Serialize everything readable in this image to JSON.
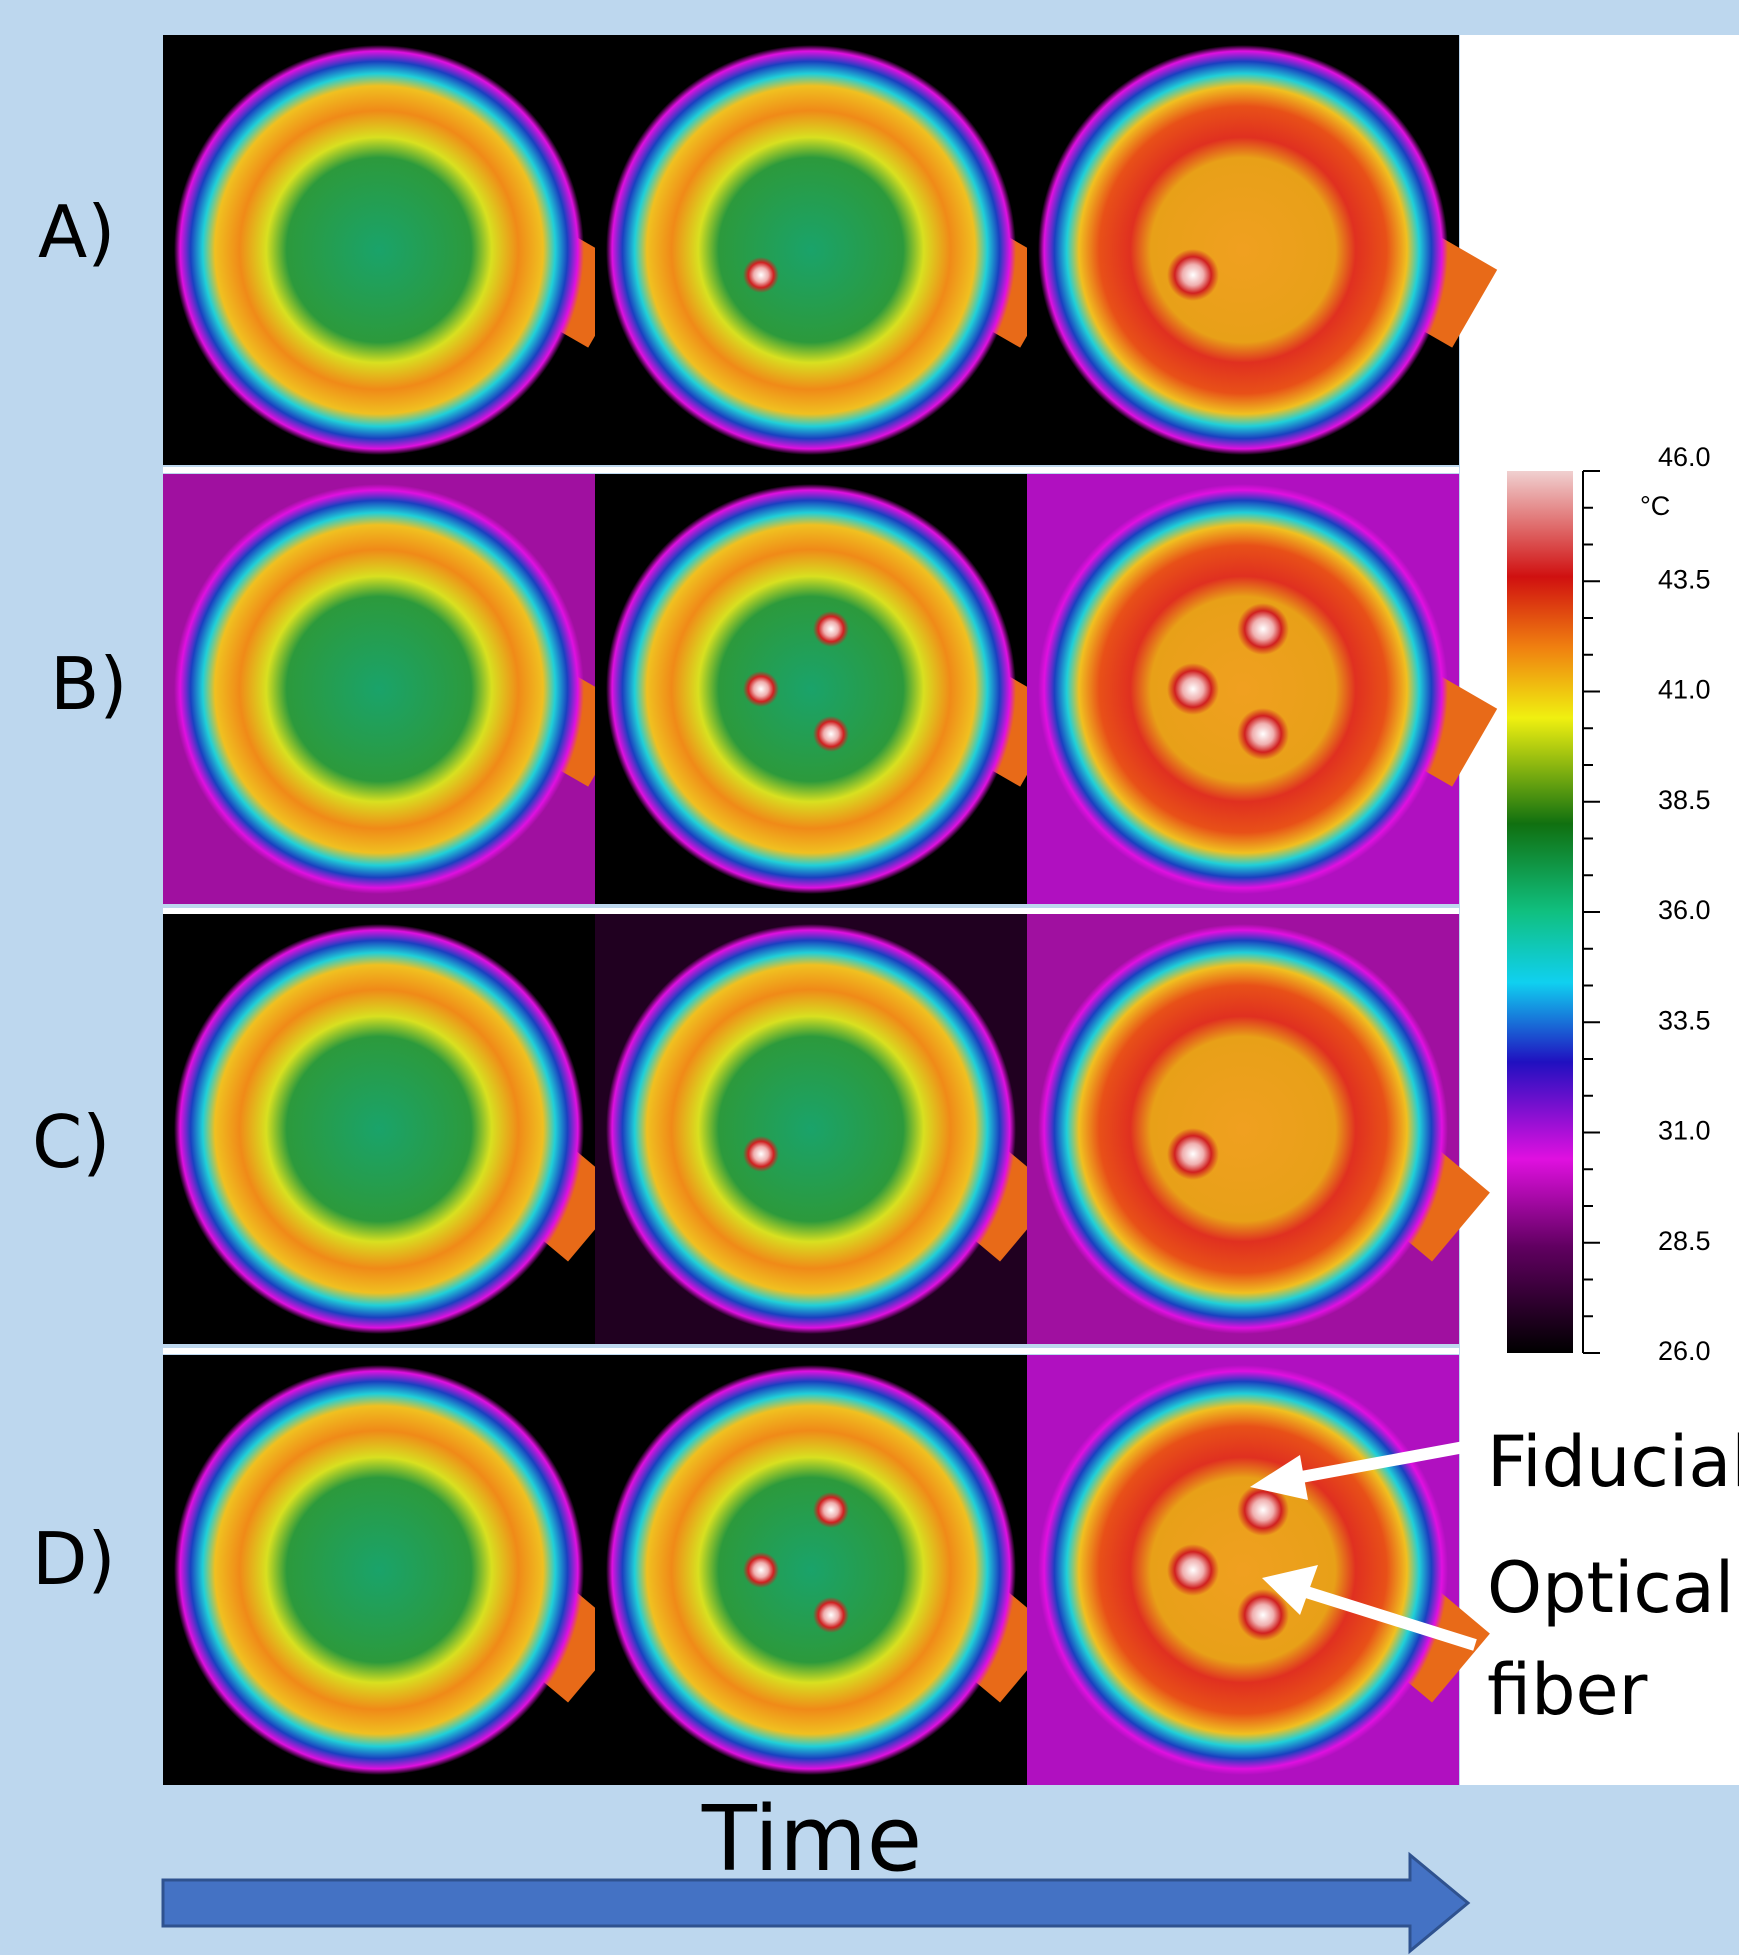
{
  "row_labels": [
    "A)",
    "B)",
    "C)",
    "D)"
  ],
  "colorbar": {
    "unit": "°C",
    "range": [
      26,
      46
    ],
    "ticks": [
      {
        "value": 46,
        "label": "46.0"
      },
      {
        "value": 43.5,
        "label": "43.5"
      },
      {
        "value": 41,
        "label": "41.0"
      },
      {
        "value": 38.5,
        "label": "38.5"
      },
      {
        "value": 36,
        "label": "36.0"
      },
      {
        "value": 33.5,
        "label": "33.5"
      },
      {
        "value": 31,
        "label": "31.0"
      },
      {
        "value": 28.5,
        "label": "28.5"
      },
      {
        "value": 26,
        "label": "26.0"
      }
    ]
  },
  "annotations": {
    "fiducial": "Fiducial",
    "optical": "Optical",
    "fiber": "fiber"
  },
  "time_label": "Time"
}
